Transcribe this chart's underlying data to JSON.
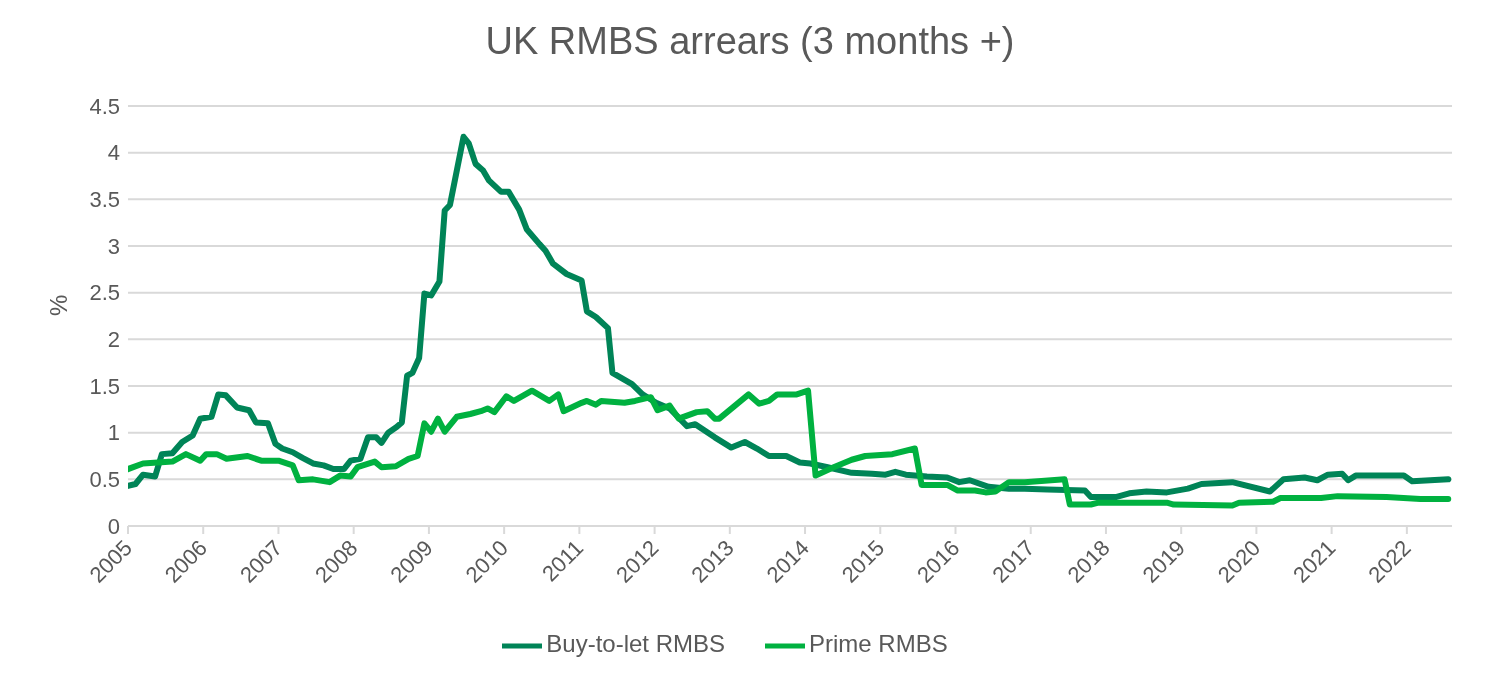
{
  "chart_data": {
    "type": "line",
    "title": "UK RMBS arrears (3 months +)",
    "ylabel": "%",
    "xlim": [
      2005,
      2022.6
    ],
    "xticks": [
      2005,
      2006,
      2007,
      2008,
      2009,
      2010,
      2011,
      2012,
      2013,
      2014,
      2015,
      2016,
      2017,
      2018,
      2019,
      2020,
      2021,
      2022
    ],
    "ylim": [
      0,
      4.5
    ],
    "yticks": [
      0,
      0.5,
      1,
      1.5,
      2,
      2.5,
      3,
      3.5,
      4,
      4.5
    ],
    "grid": "y",
    "legend": "bottom",
    "marker": "none",
    "line_style": "solid",
    "series": [
      {
        "name": "Buy-to-let RMBS",
        "color": "#008457",
        "x": [
          2005.0,
          2005.1,
          2005.2,
          2005.36,
          2005.45,
          2005.59,
          2005.72,
          2005.86,
          2005.96,
          2006.11,
          2006.2,
          2006.3,
          2006.45,
          2006.61,
          2006.7,
          2006.86,
          2006.96,
          2007.05,
          2007.19,
          2007.32,
          2007.46,
          2007.6,
          2007.73,
          2007.87,
          2007.96,
          2008.09,
          2008.19,
          2008.3,
          2008.37,
          2008.46,
          2008.57,
          2008.64,
          2008.71,
          2008.78,
          2008.87,
          2008.94,
          2009.03,
          2009.14,
          2009.21,
          2009.28,
          2009.46,
          2009.53,
          2009.62,
          2009.72,
          2009.8,
          2009.96,
          2010.06,
          2010.2,
          2010.3,
          2010.47,
          2010.55,
          2010.65,
          2010.83,
          2011.03,
          2011.1,
          2011.22,
          2011.38,
          2011.44,
          2011.7,
          2011.84,
          2012.02,
          2012.2,
          2012.43,
          2012.54,
          2012.8,
          2013.02,
          2013.2,
          2013.36,
          2013.52,
          2013.75,
          2013.93,
          2014.07,
          2014.3,
          2014.62,
          2014.89,
          2015.07,
          2015.2,
          2015.34,
          2015.62,
          2015.89,
          2016.05,
          2016.19,
          2016.44,
          2016.71,
          2016.92,
          2017.22,
          2017.72,
          2017.8,
          2018.13,
          2018.31,
          2018.54,
          2018.81,
          2019.09,
          2019.27,
          2019.68,
          2020.18,
          2020.36,
          2020.64,
          2020.81,
          2020.95,
          2021.14,
          2021.22,
          2021.32,
          2021.96,
          2022.07,
          2022.55
        ],
        "values": [
          0.43,
          0.45,
          0.55,
          0.53,
          0.77,
          0.78,
          0.9,
          0.97,
          1.15,
          1.17,
          1.41,
          1.4,
          1.27,
          1.24,
          1.11,
          1.1,
          0.88,
          0.83,
          0.79,
          0.73,
          0.67,
          0.65,
          0.61,
          0.61,
          0.7,
          0.72,
          0.95,
          0.95,
          0.89,
          1.0,
          1.06,
          1.11,
          1.61,
          1.64,
          1.8,
          2.49,
          2.47,
          2.62,
          3.38,
          3.44,
          4.17,
          4.1,
          3.88,
          3.81,
          3.7,
          3.58,
          3.58,
          3.39,
          3.18,
          3.02,
          2.95,
          2.81,
          2.7,
          2.63,
          2.3,
          2.24,
          2.12,
          1.64,
          1.52,
          1.41,
          1.32,
          1.26,
          1.07,
          1.09,
          0.95,
          0.84,
          0.9,
          0.83,
          0.75,
          0.75,
          0.68,
          0.67,
          0.63,
          0.57,
          0.56,
          0.55,
          0.58,
          0.55,
          0.53,
          0.52,
          0.47,
          0.49,
          0.42,
          0.4,
          0.4,
          0.39,
          0.38,
          0.31,
          0.31,
          0.35,
          0.37,
          0.36,
          0.4,
          0.45,
          0.47,
          0.37,
          0.5,
          0.52,
          0.49,
          0.55,
          0.56,
          0.49,
          0.54,
          0.54,
          0.48,
          0.5
        ]
      },
      {
        "name": "Prime RMBS",
        "color": "#00b140",
        "x": [
          2005.0,
          2005.2,
          2005.59,
          2005.77,
          2005.96,
          2006.04,
          2006.18,
          2006.31,
          2006.59,
          2006.77,
          2007.0,
          2007.19,
          2007.27,
          2007.46,
          2007.68,
          2007.82,
          2007.96,
          2008.05,
          2008.28,
          2008.37,
          2008.56,
          2008.73,
          2008.85,
          2008.94,
          2009.03,
          2009.12,
          2009.21,
          2009.37,
          2009.55,
          2009.69,
          2009.78,
          2009.87,
          2010.03,
          2010.13,
          2010.37,
          2010.6,
          2010.72,
          2010.79,
          2011.03,
          2011.1,
          2011.22,
          2011.29,
          2011.6,
          2011.74,
          2011.95,
          2012.04,
          2012.2,
          2012.32,
          2012.56,
          2012.7,
          2012.8,
          2012.86,
          2013.25,
          2013.39,
          2013.52,
          2013.63,
          2013.89,
          2014.04,
          2014.14,
          2014.38,
          2014.62,
          2014.8,
          2015.16,
          2015.46,
          2015.55,
          2015.89,
          2016.03,
          2016.26,
          2016.4,
          2016.53,
          2016.71,
          2016.92,
          2017.45,
          2017.52,
          2017.8,
          2017.9,
          2018.81,
          2018.9,
          2019.68,
          2019.77,
          2020.22,
          2020.32,
          2020.86,
          2021.08,
          2021.73,
          2022.18,
          2022.55
        ],
        "values": [
          0.61,
          0.67,
          0.69,
          0.77,
          0.7,
          0.77,
          0.77,
          0.72,
          0.75,
          0.7,
          0.7,
          0.65,
          0.49,
          0.5,
          0.47,
          0.54,
          0.53,
          0.63,
          0.69,
          0.63,
          0.64,
          0.72,
          0.75,
          1.1,
          1.01,
          1.15,
          1.01,
          1.17,
          1.2,
          1.23,
          1.26,
          1.22,
          1.39,
          1.34,
          1.45,
          1.34,
          1.41,
          1.23,
          1.32,
          1.34,
          1.3,
          1.34,
          1.32,
          1.34,
          1.38,
          1.24,
          1.29,
          1.15,
          1.22,
          1.23,
          1.15,
          1.15,
          1.41,
          1.31,
          1.34,
          1.41,
          1.41,
          1.45,
          0.54,
          0.63,
          0.71,
          0.75,
          0.77,
          0.83,
          0.44,
          0.44,
          0.38,
          0.38,
          0.36,
          0.37,
          0.47,
          0.47,
          0.5,
          0.23,
          0.23,
          0.25,
          0.25,
          0.23,
          0.22,
          0.25,
          0.26,
          0.3,
          0.3,
          0.32,
          0.31,
          0.29,
          0.29
        ]
      }
    ]
  }
}
